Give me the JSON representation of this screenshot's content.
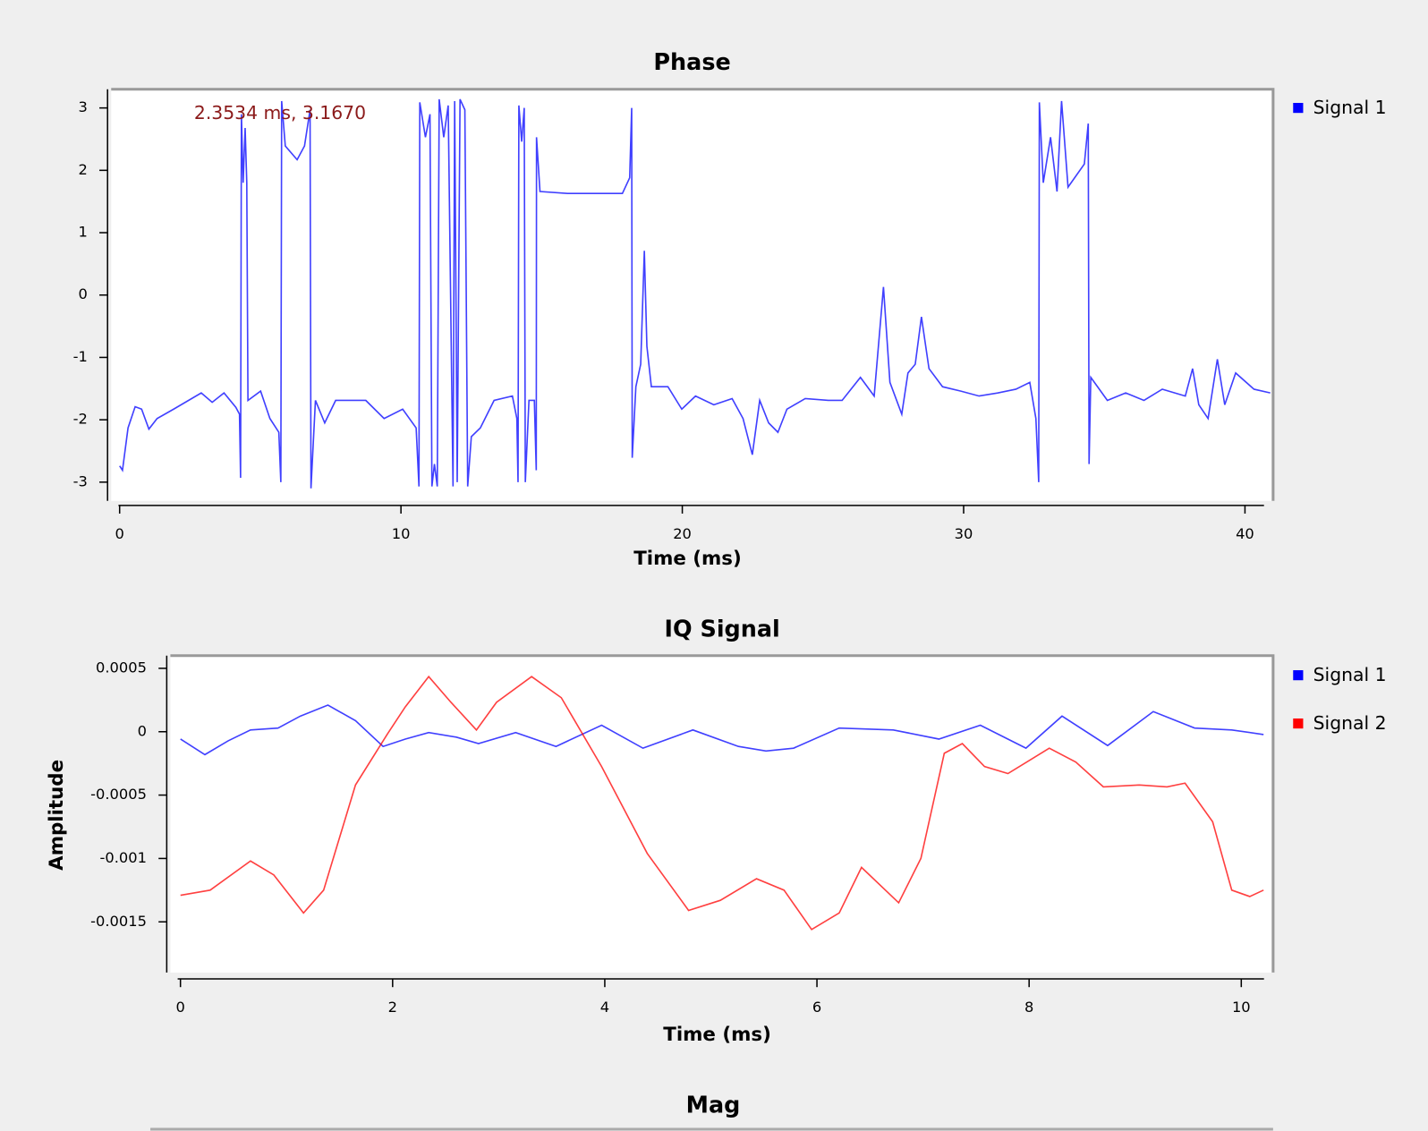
{
  "chart_data": [
    {
      "type": "line",
      "title": "Phase",
      "xlabel": "Time (ms)",
      "annotation": "2.3534 ms, 3.1670",
      "xlim": [
        -0.3,
        41
      ],
      "ylim": [
        -3.3,
        3.3
      ],
      "xticks": [
        0,
        10,
        20,
        30,
        40
      ],
      "yticks": [
        -3,
        -2,
        -1,
        0,
        1,
        2,
        3
      ],
      "series": [
        {
          "name": "Signal 1",
          "color": "#0000ff",
          "x": [
            0,
            0.1,
            0.3,
            0.55,
            0.78,
            1.04,
            1.33,
            1.92,
            2.9,
            3.29,
            3.71,
            4.13,
            4.26,
            4.3,
            4.33,
            4.39,
            4.46,
            4.52,
            4.56,
            5.01,
            5.34,
            5.66,
            5.73,
            5.76,
            5.89,
            6.31,
            6.57,
            6.77,
            6.8,
            6.96,
            7.29,
            7.68,
            8.75,
            9.4,
            10.06,
            10.54,
            10.64,
            10.67,
            10.87,
            11.03,
            11.1,
            11.19,
            11.29,
            11.36,
            11.52,
            11.68,
            11.85,
            11.91,
            12.0,
            12.1,
            12.27,
            12.37,
            12.5,
            12.82,
            13.31,
            13.96,
            14.12,
            14.16,
            14.19,
            14.29,
            14.38,
            14.42,
            14.55,
            14.74,
            14.81,
            14.82,
            14.94,
            15.92,
            17.87,
            18.13,
            18.2,
            18.22,
            18.35,
            18.52,
            18.65,
            18.74,
            18.9,
            19.49,
            19.98,
            20.47,
            21.12,
            21.77,
            22.16,
            22.49,
            22.75,
            23.07,
            23.4,
            23.72,
            24.37,
            25.19,
            25.68,
            26.33,
            26.82,
            27.15,
            27.38,
            27.8,
            28.02,
            28.28,
            28.5,
            28.77,
            29.25,
            29.9,
            30.55,
            31.21,
            31.86,
            32.35,
            32.57,
            32.67,
            32.69,
            32.83,
            33.09,
            33.32,
            33.48,
            33.71,
            34.29,
            34.43,
            34.46,
            34.52,
            35.11,
            35.76,
            36.41,
            37.06,
            37.88,
            38.14,
            38.36,
            38.69,
            39.02,
            39.28,
            39.67,
            40.32,
            40.9
          ],
          "values": [
            -2.74,
            -2.81,
            -2.13,
            -1.79,
            -1.83,
            -2.15,
            -1.98,
            -1.83,
            -1.57,
            -1.72,
            -1.57,
            -1.8,
            -1.91,
            -2.93,
            2.9,
            1.8,
            2.68,
            1.8,
            -1.69,
            -1.54,
            -1.98,
            -2.2,
            -3.0,
            3.11,
            2.39,
            2.17,
            2.39,
            2.97,
            -3.1,
            -1.69,
            -2.05,
            -1.69,
            -1.69,
            -1.98,
            -1.83,
            -2.13,
            -3.07,
            3.09,
            2.53,
            2.9,
            -3.07,
            -2.71,
            -3.07,
            3.14,
            2.53,
            3.04,
            -3.07,
            3.11,
            -3.0,
            3.14,
            2.97,
            -3.07,
            -2.27,
            -2.13,
            -1.69,
            -1.62,
            -1.98,
            -3.0,
            3.04,
            2.46,
            3.0,
            -3.0,
            -1.69,
            -1.69,
            -2.81,
            2.53,
            1.66,
            1.63,
            1.63,
            1.88,
            3.0,
            -2.61,
            -1.47,
            -1.11,
            0.71,
            -0.82,
            -1.47,
            -1.47,
            -1.83,
            -1.62,
            -1.76,
            -1.66,
            -1.98,
            -2.56,
            -1.69,
            -2.05,
            -2.2,
            -1.83,
            -1.66,
            -1.69,
            -1.69,
            -1.32,
            -1.62,
            0.13,
            -1.4,
            -1.91,
            -1.25,
            -1.11,
            -0.35,
            -1.18,
            -1.47,
            -1.54,
            -1.62,
            -1.57,
            -1.51,
            -1.4,
            -1.98,
            -3.0,
            3.09,
            1.8,
            2.53,
            1.66,
            3.11,
            1.73,
            2.1,
            2.75,
            -2.71,
            -1.32,
            -1.69,
            -1.57,
            -1.69,
            -1.51,
            -1.62,
            -1.18,
            -1.76,
            -1.98,
            -1.03,
            -1.76,
            -1.25,
            -1.51,
            -1.57
          ]
        }
      ]
    },
    {
      "type": "line",
      "title": "IQ Signal",
      "xlabel": "Time (ms)",
      "ylabel": "Amplitude",
      "xlim": [
        -0.095,
        10.3
      ],
      "ylim": [
        -0.0019,
        0.0006
      ],
      "xticks": [
        0,
        2,
        4,
        6,
        8,
        10
      ],
      "yticks": [
        -0.0015,
        -0.001,
        -0.0005,
        0,
        0.0005
      ],
      "series": [
        {
          "name": "Signal 1",
          "color": "#0000ff",
          "x": [
            0,
            0.23,
            0.45,
            0.66,
            0.92,
            1.13,
            1.39,
            1.65,
            1.91,
            2.12,
            2.34,
            2.6,
            2.81,
            3.16,
            3.54,
            3.97,
            4.36,
            4.83,
            5.26,
            5.52,
            5.78,
            6.21,
            6.72,
            7.15,
            7.54,
            7.97,
            8.31,
            8.74,
            9.17,
            9.56,
            9.91,
            10.21
          ],
          "values": [
            -5.8e-05,
            -0.000181,
            -7.2e-05,
            1.4e-05,
            2.9e-05,
            0.000123,
            0.00021,
            8.7e-05,
            -0.000116,
            -5.8e-05,
            -7e-06,
            -4.3e-05,
            -9.4e-05,
            -7e-06,
            -0.000116,
            5.1e-05,
            -0.00013,
            1.4e-05,
            -0.000116,
            -0.000152,
            -0.00013,
            2.9e-05,
            1.4e-05,
            -5.8e-05,
            5.1e-05,
            -0.00013,
            0.000123,
            -0.000109,
            0.000159,
            2.9e-05,
            1.4e-05,
            -2.2e-05
          ]
        },
        {
          "name": "Signal 2",
          "color": "#ff0000",
          "x": [
            0,
            0.28,
            0.66,
            0.88,
            1.16,
            1.35,
            1.65,
            1.95,
            2.12,
            2.34,
            2.55,
            2.79,
            2.98,
            3.31,
            3.59,
            3.97,
            4.4,
            4.79,
            5.09,
            5.43,
            5.69,
            5.95,
            6.21,
            6.42,
            6.77,
            6.98,
            7.2,
            7.37,
            7.58,
            7.8,
            8.19,
            8.44,
            8.7,
            9.04,
            9.3,
            9.47,
            9.73,
            9.91,
            10.08,
            10.21
          ],
          "values": [
            -0.00129,
            -0.00125,
            -0.00102,
            -0.00113,
            -0.00143,
            -0.00125,
            -0.00042,
            -2e-05,
            0.000196,
            0.000435,
            0.000232,
            1.4e-05,
            0.000232,
            0.000435,
            0.000268,
            -0.000275,
            -0.00096,
            -0.00141,
            -0.00133,
            -0.00116,
            -0.00125,
            -0.00156,
            -0.00143,
            -0.00107,
            -0.00135,
            -0.001,
            -0.00017,
            -9.4e-05,
            -0.000275,
            -0.00033,
            -0.00013,
            -0.000239,
            -0.000435,
            -0.00042,
            -0.000435,
            -0.000406,
            -0.00071,
            -0.00125,
            -0.0013,
            -0.00125
          ]
        }
      ]
    },
    {
      "type": "line",
      "title": "Mag"
    }
  ]
}
